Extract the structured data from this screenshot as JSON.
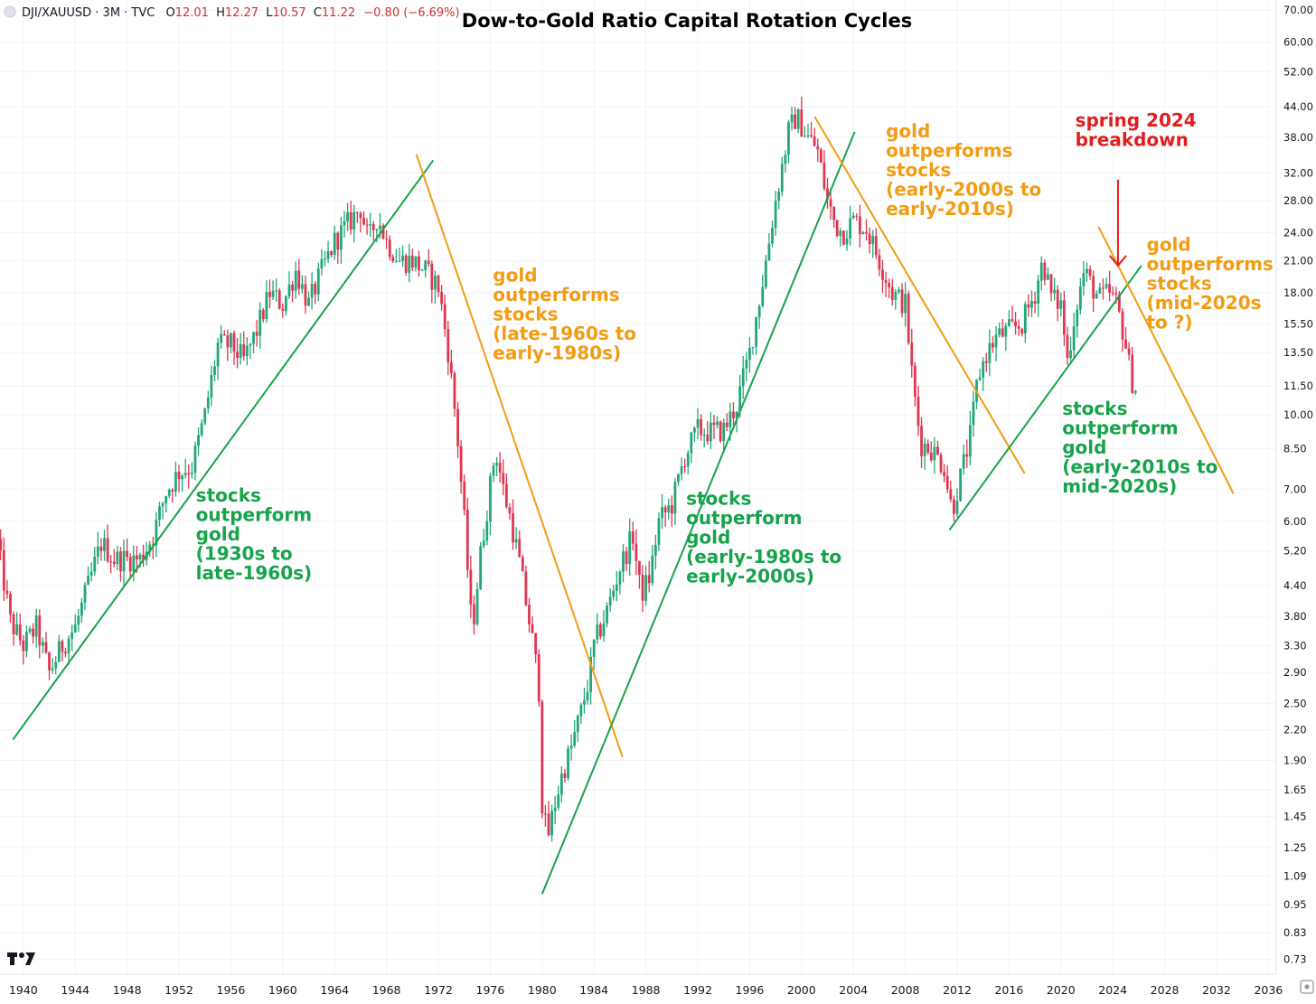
{
  "header": {
    "symbol": "DJI/XAUUSD · 3M · TVC",
    "ohlc": [
      {
        "label": "O",
        "value": "12.01"
      },
      {
        "label": "H",
        "value": "12.27"
      },
      {
        "label": "L",
        "value": "10.57"
      },
      {
        "label": "C",
        "value": "11.22"
      }
    ],
    "change": "−0.80 (−6.69%)"
  },
  "logo_text": "TV",
  "colors": {
    "up": "#22a67a",
    "down": "#e0364f",
    "trend_green": "#17a34a",
    "trend_orange": "#f39c12",
    "annotation_red": "#e11d1d",
    "grid": "#f0f3fa"
  },
  "chart_data": {
    "type": "candlestick",
    "title": "Dow-to-Gold Ratio Capital Rotation Cycles",
    "y_scale": "log",
    "grid": true,
    "xlim": [
      1938.2,
      2036.6
    ],
    "ylim": [
      0.68,
      73.5
    ],
    "y_ticks": [
      "70.00",
      "60.00",
      "52.00",
      "44.00",
      "38.00",
      "32.00",
      "28.00",
      "24.00",
      "21.00",
      "18.00",
      "15.50",
      "13.50",
      "11.50",
      "10.00",
      "8.50",
      "7.00",
      "6.00",
      "5.20",
      "4.40",
      "3.80",
      "3.30",
      "2.90",
      "2.50",
      "2.20",
      "1.90",
      "1.65",
      "1.45",
      "1.25",
      "1.09",
      "0.95",
      "0.83",
      "0.73"
    ],
    "x_ticks": [
      "1940",
      "1944",
      "1948",
      "1952",
      "1956",
      "1960",
      "1964",
      "1968",
      "1972",
      "1976",
      "1980",
      "1984",
      "1988",
      "1992",
      "1996",
      "2000",
      "2004",
      "2008",
      "2012",
      "2016",
      "2020",
      "2024",
      "2028",
      "2032",
      "2036"
    ],
    "series_points": [
      [
        1938.0,
        5.4
      ],
      [
        1939.0,
        3.7
      ],
      [
        1940.0,
        3.3
      ],
      [
        1941.0,
        3.6
      ],
      [
        1942.0,
        2.9
      ],
      [
        1943.0,
        3.3
      ],
      [
        1944.0,
        3.6
      ],
      [
        1945.0,
        4.4
      ],
      [
        1946.0,
        5.4
      ],
      [
        1947.0,
        5.0
      ],
      [
        1948.0,
        5.0
      ],
      [
        1949.0,
        5.0
      ],
      [
        1950.0,
        5.6
      ],
      [
        1951.0,
        6.9
      ],
      [
        1952.0,
        7.6
      ],
      [
        1953.0,
        7.8
      ],
      [
        1954.0,
        10.0
      ],
      [
        1955.0,
        14.0
      ],
      [
        1956.0,
        14.0
      ],
      [
        1957.0,
        13.0
      ],
      [
        1958.0,
        15.0
      ],
      [
        1959.0,
        18.0
      ],
      [
        1960.0,
        17.0
      ],
      [
        1961.0,
        20.0
      ],
      [
        1962.0,
        17.0
      ],
      [
        1963.0,
        20.0
      ],
      [
        1964.0,
        23.0
      ],
      [
        1965.0,
        25.0
      ],
      [
        1966.0,
        27.0
      ],
      [
        1966.6,
        23.0
      ],
      [
        1967.3,
        26.0
      ],
      [
        1968.0,
        23.0
      ],
      [
        1969.0,
        21.0
      ],
      [
        1970.0,
        21.0
      ],
      [
        1971.0,
        20.0
      ],
      [
        1972.0,
        18.5
      ],
      [
        1972.7,
        14.0
      ],
      [
        1973.4,
        9.5
      ],
      [
        1974.0,
        6.0
      ],
      [
        1974.6,
        3.5
      ],
      [
        1975.2,
        5.0
      ],
      [
        1975.8,
        6.5
      ],
      [
        1976.4,
        8.5
      ],
      [
        1977.0,
        7.0
      ],
      [
        1977.6,
        6.0
      ],
      [
        1978.2,
        5.0
      ],
      [
        1978.8,
        4.0
      ],
      [
        1979.4,
        3.2
      ],
      [
        1979.8,
        2.6
      ],
      [
        1980.0,
        1.55
      ],
      [
        1980.4,
        1.3
      ],
      [
        1981.0,
        1.55
      ],
      [
        1981.6,
        1.8
      ],
      [
        1982.2,
        2.0
      ],
      [
        1983.0,
        2.4
      ],
      [
        1983.6,
        2.8
      ],
      [
        1984.0,
        3.3
      ],
      [
        1985.0,
        3.9
      ],
      [
        1986.0,
        4.8
      ],
      [
        1987.0,
        5.6
      ],
      [
        1987.6,
        4.2
      ],
      [
        1988.3,
        4.6
      ],
      [
        1989.0,
        6.0
      ],
      [
        1990.0,
        6.5
      ],
      [
        1991.0,
        8.2
      ],
      [
        1992.0,
        9.3
      ],
      [
        1993.0,
        9.2
      ],
      [
        1994.0,
        9.3
      ],
      [
        1995.0,
        10.5
      ],
      [
        1996.0,
        13.5
      ],
      [
        1997.0,
        19.0
      ],
      [
        1998.0,
        28.0
      ],
      [
        1999.0,
        39.0
      ],
      [
        1999.6,
        42.0
      ],
      [
        2000.5,
        38.0
      ],
      [
        2001.2,
        36.0
      ],
      [
        2002.0,
        28.0
      ],
      [
        2002.6,
        25.0
      ],
      [
        2003.2,
        24.0
      ],
      [
        2004.0,
        25.5
      ],
      [
        2005.0,
        24.5
      ],
      [
        2006.0,
        21.0
      ],
      [
        2007.0,
        18.0
      ],
      [
        2008.0,
        17.0
      ],
      [
        2008.6,
        11.5
      ],
      [
        2009.2,
        8.7
      ],
      [
        2010.0,
        8.5
      ],
      [
        2011.0,
        7.8
      ],
      [
        2011.6,
        6.3
      ],
      [
        2012.3,
        7.5
      ],
      [
        2013.0,
        9.0
      ],
      [
        2013.6,
        12.0
      ],
      [
        2014.3,
        13.5
      ],
      [
        2015.0,
        14.5
      ],
      [
        2016.0,
        15.0
      ],
      [
        2017.0,
        15.5
      ],
      [
        2018.0,
        18.0
      ],
      [
        2018.6,
        21.0
      ],
      [
        2019.3,
        17.5
      ],
      [
        2020.0,
        17.0
      ],
      [
        2020.5,
        13.0
      ],
      [
        2021.1,
        16.5
      ],
      [
        2021.8,
        20.0
      ],
      [
        2022.4,
        18.5
      ],
      [
        2023.0,
        17.5
      ],
      [
        2023.7,
        18.0
      ],
      [
        2024.3,
        17.0
      ],
      [
        2024.9,
        14.5
      ],
      [
        2025.4,
        12.0
      ],
      [
        2025.8,
        11.22
      ]
    ],
    "trendlines": [
      {
        "color": "green",
        "from": [
          1939.2,
          2.1
        ],
        "to": [
          1971.6,
          34.0
        ]
      },
      {
        "color": "orange",
        "from": [
          1970.3,
          35.0
        ],
        "to": [
          1986.2,
          1.93
        ]
      },
      {
        "color": "green",
        "from": [
          1980.0,
          1.0
        ],
        "to": [
          2004.1,
          39.0
        ]
      },
      {
        "color": "orange",
        "from": [
          2001.0,
          42.0
        ],
        "to": [
          2017.2,
          7.55
        ]
      },
      {
        "color": "green",
        "from": [
          2011.4,
          5.75
        ],
        "to": [
          2026.2,
          20.5
        ]
      },
      {
        "color": "orange",
        "from": [
          2022.9,
          24.7
        ],
        "to": [
          2033.3,
          6.85
        ]
      }
    ],
    "annotations": [
      {
        "color": "green",
        "x": 1953.3,
        "y": 6.6,
        "lines": [
          "stocks",
          "outperform",
          "gold",
          "(1930s to",
          "late-1960s)"
        ]
      },
      {
        "color": "orange",
        "x": 1976.2,
        "y": 19.0,
        "lines": [
          "gold",
          "outperforms",
          "stocks",
          "(late-1960s to",
          "early-1980s)"
        ]
      },
      {
        "color": "green",
        "x": 1991.1,
        "y": 6.5,
        "lines": [
          "stocks",
          "outperform",
          "gold",
          "(early-1980s to",
          "early-2000s)"
        ]
      },
      {
        "color": "orange",
        "x": 2006.5,
        "y": 38.0,
        "lines": [
          "gold",
          "outperforms",
          "stocks",
          "(early-2000s to",
          "early-2010s)"
        ]
      },
      {
        "color": "red",
        "x": 2021.1,
        "y": 40.0,
        "lines": [
          "spring 2024",
          "breakdown"
        ]
      },
      {
        "color": "green",
        "x": 2020.1,
        "y": 10.0,
        "lines": [
          "stocks",
          "outperform",
          "gold",
          "(early-2010s to",
          "mid-2020s)"
        ]
      },
      {
        "color": "orange",
        "x": 2026.6,
        "y": 22.0,
        "lines": [
          "gold",
          "outperforms",
          "stocks",
          "(mid-2020s",
          "to ?)"
        ]
      }
    ],
    "arrow": {
      "color": "red",
      "x": 2024.4,
      "from_y": 31.0,
      "to_y": 20.5
    }
  }
}
